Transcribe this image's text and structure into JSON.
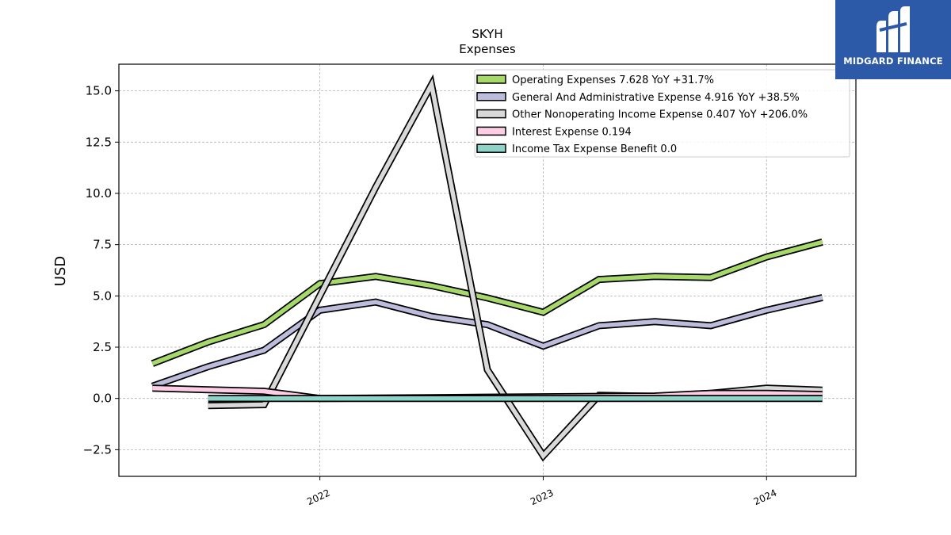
{
  "chart_data": {
    "type": "line",
    "title": "SKYH",
    "subtitle": "Expenses",
    "ylabel": "USD",
    "xlabel": "",
    "ylim": [
      -3.8,
      16.3
    ],
    "xlim": [
      2021.1,
      2024.4
    ],
    "yticks": [
      -2.5,
      0.0,
      2.5,
      5.0,
      7.5,
      10.0,
      12.5,
      15.0
    ],
    "ytick_labels": [
      "−2.5",
      "0.0",
      "2.5",
      "5.0",
      "7.5",
      "10.0",
      "12.5",
      "15.0"
    ],
    "xticks": [
      2022,
      2023,
      2024
    ],
    "xtick_labels": [
      "2022",
      "2023",
      "2024"
    ],
    "grid": true,
    "legend_position": "top-right",
    "series": [
      {
        "name": "Operating Expenses",
        "legend": "Operating Expenses  7.628 YoY +31.7%",
        "color": "#a6d96a",
        "x": [
          2021.25,
          2021.5,
          2021.75,
          2022.0,
          2022.25,
          2022.5,
          2022.75,
          2023.0,
          2023.25,
          2023.5,
          2023.75,
          2024.0,
          2024.25
        ],
        "y": [
          1.7,
          2.75,
          3.6,
          5.6,
          5.95,
          5.5,
          4.9,
          4.2,
          5.8,
          5.95,
          5.9,
          6.9,
          7.628
        ]
      },
      {
        "name": "General And Administrative Expense",
        "legend": "General And Administrative Expense  4.916 YoY +38.5%",
        "color": "#bcbddc",
        "x": [
          2021.25,
          2021.5,
          2021.75,
          2022.0,
          2022.25,
          2022.5,
          2022.75,
          2023.0,
          2023.25,
          2023.5,
          2023.75,
          2024.0,
          2024.25
        ],
        "y": [
          0.6,
          1.55,
          2.35,
          4.3,
          4.7,
          4.0,
          3.6,
          2.55,
          3.55,
          3.75,
          3.55,
          4.3,
          4.916
        ]
      },
      {
        "name": "Other Nonoperating Income Expense",
        "legend": "Other Nonoperating Income Expense  0.407 YoY +206.0%",
        "color": "#d9d9d9",
        "x": [
          2021.5,
          2021.75,
          2022.0,
          2022.25,
          2022.5,
          2022.75,
          2023.0,
          2023.25,
          2023.5,
          2023.75,
          2024.0,
          2024.25
        ],
        "y": [
          -0.35,
          -0.3,
          5.0,
          10.3,
          15.3,
          1.4,
          -2.8,
          0.15,
          0.1,
          0.25,
          0.5,
          0.407
        ]
      },
      {
        "name": "Interest Expense",
        "legend": "Interest Expense  0.194",
        "color": "#fccde5",
        "x": [
          2021.25,
          2021.75,
          2022.0,
          2022.25,
          2022.5,
          2022.75,
          2023.0,
          2023.25,
          2023.5,
          2023.75,
          2024.0,
          2024.25
        ],
        "y": [
          0.5,
          0.35,
          0.0,
          0.02,
          0.04,
          0.06,
          0.08,
          0.1,
          0.12,
          0.25,
          0.25,
          0.194
        ]
      },
      {
        "name": "Income Tax Expense Benefit",
        "legend": "Income Tax Expense Benefit  0.0",
        "color": "#8dd3c7",
        "x": [
          2021.5,
          2021.75,
          2022.0,
          2022.25,
          2022.5,
          2022.75,
          2023.0,
          2023.25,
          2023.5,
          2023.75,
          2024.0,
          2024.25
        ],
        "y": [
          0.0,
          0.0,
          0.0,
          0.0,
          0.0,
          0.0,
          0.0,
          0.0,
          0.0,
          0.0,
          0.0,
          0.0
        ]
      }
    ]
  },
  "logo": {
    "text": "MIDGARD FINANCE",
    "bg_color": "#2c5aa8"
  }
}
